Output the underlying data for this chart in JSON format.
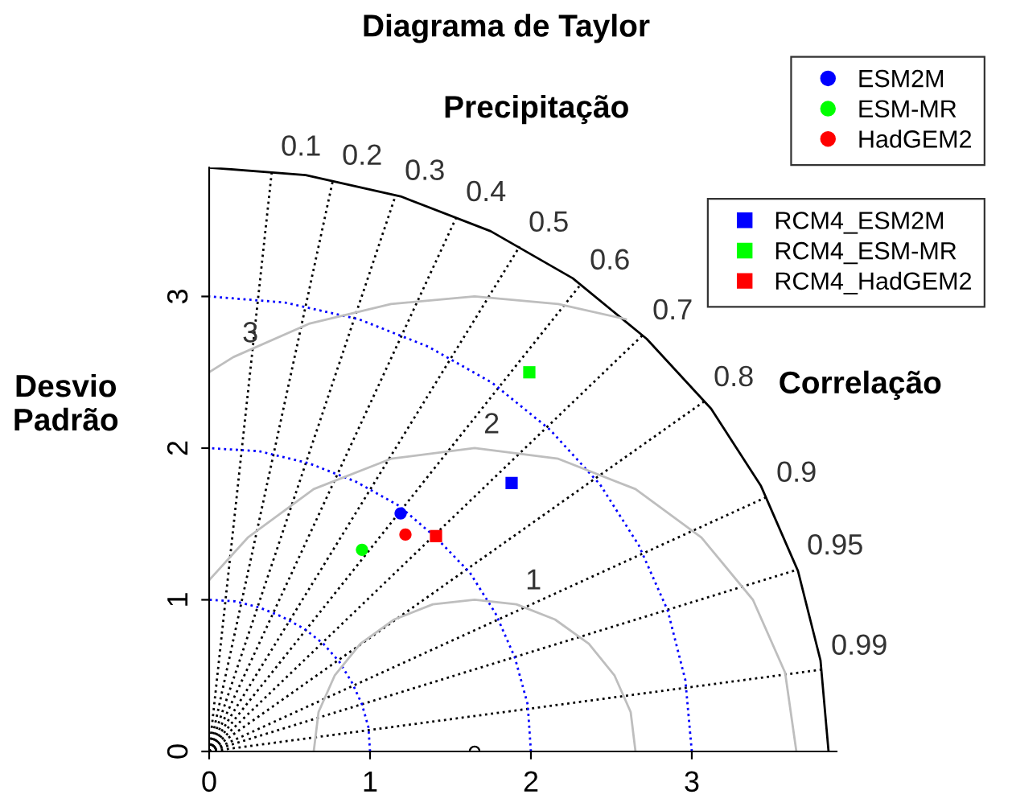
{
  "chart_data": {
    "type": "scatter",
    "title": "Diagrama de Taylor",
    "subtitle": "Precipitação",
    "ylabel": "Desvio\nPadrão",
    "xlim": [
      0,
      3.9
    ],
    "ylim": [
      0,
      3.85
    ],
    "xticks": [
      0,
      1,
      2,
      3
    ],
    "yticks": [
      0,
      1,
      2,
      3
    ],
    "grid": false,
    "legend": "top right",
    "annotations": [
      "Correlação",
      {
        "text": "0.1",
        "x": 0.39,
        "y": 3.83
      },
      {
        "text": "0.2",
        "x": 0.77,
        "y": 3.77
      },
      {
        "text": "0.3",
        "x": 1.16,
        "y": 3.67
      },
      {
        "text": "0.4",
        "x": 1.54,
        "y": 3.53
      },
      {
        "text": "0.5",
        "x": 1.93,
        "y": 3.33
      },
      {
        "text": "0.6",
        "x": 2.31,
        "y": 3.08
      },
      {
        "text": "0.7",
        "x": 2.7,
        "y": 2.75
      },
      {
        "text": "0.8",
        "x": 3.08,
        "y": 2.31
      },
      {
        "text": "0.9",
        "x": 3.47,
        "y": 1.68
      },
      {
        "text": "0.95",
        "x": 3.66,
        "y": 1.2
      },
      {
        "text": "0.99",
        "x": 3.81,
        "y": 0.54
      },
      {
        "text": "1",
        "x": 1.91,
        "y": 0.97
      },
      {
        "text": "2",
        "x": 1.65,
        "y": 2
      },
      {
        "text": "3",
        "x": 0.15,
        "y": 2.6
      }
    ],
    "series": [
      {
        "type": "line",
        "color": "#000000",
        "line_style": "dotted",
        "x": [
          0,
          0.39
        ],
        "values": [
          0,
          3.83
        ]
      },
      {
        "type": "line",
        "color": "#000000",
        "line_style": "dotted",
        "x": [
          0,
          0.77
        ],
        "values": [
          0,
          3.77
        ]
      },
      {
        "type": "line",
        "color": "#000000",
        "line_style": "dotted",
        "x": [
          0,
          1.16
        ],
        "values": [
          0,
          3.67
        ]
      },
      {
        "type": "line",
        "color": "#000000",
        "line_style": "dotted",
        "x": [
          0,
          1.54
        ],
        "values": [
          0,
          3.53
        ]
      },
      {
        "type": "line",
        "color": "#000000",
        "line_style": "dotted",
        "x": [
          0,
          1.93
        ],
        "values": [
          0,
          3.33
        ]
      },
      {
        "type": "line",
        "color": "#000000",
        "line_style": "dotted",
        "x": [
          0,
          2.31
        ],
        "values": [
          0,
          3.08
        ]
      },
      {
        "type": "line",
        "color": "#000000",
        "line_style": "dotted",
        "x": [
          0,
          2.7
        ],
        "values": [
          0,
          2.75
        ]
      },
      {
        "type": "line",
        "color": "#000000",
        "line_style": "dotted",
        "x": [
          0,
          3.08
        ],
        "values": [
          0,
          2.31
        ]
      },
      {
        "type": "line",
        "color": "#000000",
        "line_style": "dotted",
        "x": [
          0,
          3.47
        ],
        "values": [
          0,
          1.68
        ]
      },
      {
        "type": "line",
        "color": "#000000",
        "line_style": "dotted",
        "x": [
          0,
          3.66
        ],
        "values": [
          0,
          1.2
        ]
      },
      {
        "type": "line",
        "color": "#000000",
        "line_style": "dotted",
        "x": [
          0,
          3.81
        ],
        "values": [
          0,
          0.54
        ]
      },
      {
        "type": "line",
        "color": "#0000ff",
        "line_style": "dotted",
        "x": [
          1,
          0.99,
          0.95,
          0.89,
          0.81,
          0.71,
          0.59,
          0.45,
          0.31,
          0.16,
          0
        ],
        "values": [
          0,
          0.16,
          0.31,
          0.45,
          0.59,
          0.71,
          0.81,
          0.89,
          0.95,
          0.99,
          1
        ]
      },
      {
        "type": "line",
        "color": "#0000ff",
        "line_style": "dotted",
        "x": [
          2,
          1.98,
          1.9,
          1.78,
          1.62,
          1.41,
          1.18,
          0.91,
          0.62,
          0.31,
          0
        ],
        "values": [
          0,
          0.31,
          0.62,
          0.91,
          1.18,
          1.41,
          1.62,
          1.78,
          1.9,
          1.98,
          2
        ]
      },
      {
        "type": "line",
        "color": "#0000ff",
        "line_style": "dotted",
        "x": [
          3,
          2.96,
          2.85,
          2.67,
          2.43,
          2.12,
          1.76,
          1.36,
          0.93,
          0.47,
          0
        ],
        "values": [
          0,
          0.47,
          0.93,
          1.36,
          1.76,
          2.12,
          2.43,
          2.67,
          2.85,
          2.96,
          3
        ]
      },
      {
        "type": "line",
        "color": "#000000",
        "line_style": "solid",
        "x": [
          3.85,
          3.8,
          3.66,
          3.43,
          3.12,
          2.72,
          2.26,
          1.75,
          1.19,
          0.6,
          0
        ],
        "values": [
          0,
          0.6,
          1.19,
          1.75,
          2.26,
          2.72,
          3.12,
          3.43,
          3.66,
          3.8,
          3.85
        ]
      },
      {
        "type": "line",
        "color": "#bebebe",
        "line_style": "solid",
        "x": [
          2.65,
          2.62,
          2.52,
          2.36,
          2.15,
          1.91,
          1.65,
          1.39,
          1.15,
          0.94,
          0.78,
          0.68,
          0.65
        ],
        "values": [
          0,
          0.26,
          0.5,
          0.71,
          0.87,
          0.97,
          1,
          0.97,
          0.87,
          0.71,
          0.5,
          0.26,
          0
        ]
      },
      {
        "type": "line",
        "color": "#bebebe",
        "line_style": "solid",
        "x": [
          3.65,
          3.58,
          3.38,
          3.06,
          2.65,
          2.17,
          1.65,
          1.13,
          0.65,
          0.24,
          0
        ],
        "values": [
          0,
          0.52,
          1,
          1.41,
          1.73,
          1.93,
          2,
          1.93,
          1.73,
          1.41,
          1.13
        ]
      },
      {
        "type": "line",
        "color": "#bebebe",
        "line_style": "solid",
        "x": [
          2.59,
          2.17,
          1.65,
          1.13,
          0.62,
          0.15,
          0
        ],
        "values": [
          2.85,
          2.95,
          3,
          2.95,
          2.82,
          2.6,
          2.5
        ]
      },
      {
        "color": "#000000",
        "marker": "circle",
        "x": [
          1.65
        ],
        "values": [
          0
        ]
      },
      {
        "name": "ESM2M",
        "color": "#0000ff",
        "marker": "circle",
        "x": [
          1.19
        ],
        "values": [
          1.57
        ]
      },
      {
        "name": "ESM-MR",
        "color": "#00ff00",
        "marker": "circle",
        "x": [
          0.95
        ],
        "values": [
          1.33
        ]
      },
      {
        "name": "HadGEM2",
        "color": "#ff0000",
        "marker": "circle",
        "x": [
          1.22
        ],
        "values": [
          1.43
        ]
      },
      {
        "name": "RCM4_ESM2M",
        "color": "#0000ff",
        "marker": "square",
        "x": [
          1.88
        ],
        "values": [
          1.77
        ]
      },
      {
        "name": "RCM4_ESM-MR",
        "color": "#00ff00",
        "marker": "square",
        "x": [
          1.99
        ],
        "values": [
          2.5
        ]
      },
      {
        "name": "RCM4_HadGEM2",
        "color": "#ff0000",
        "marker": "square",
        "x": [
          1.41
        ],
        "values": [
          1.42
        ]
      }
    ]
  }
}
